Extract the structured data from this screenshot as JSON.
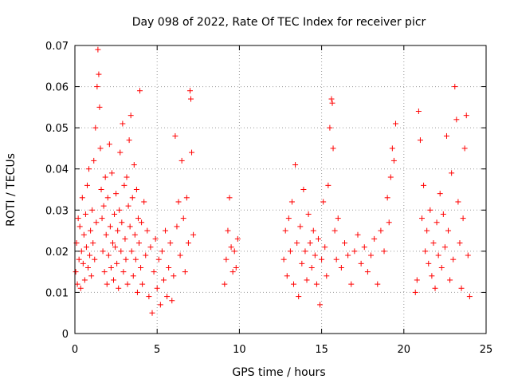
{
  "chart_data": {
    "type": "scatter",
    "title": "Day 098 of 2022, Rate Of TEC Index for receiver picr",
    "xlabel": "GPS time / hours",
    "ylabel": "ROTI / TECUs",
    "xlim": [
      0,
      25
    ],
    "ylim": [
      0,
      0.07
    ],
    "x_ticks": [
      0,
      5,
      10,
      15,
      20,
      25
    ],
    "x_tick_labels": [
      "0",
      "5",
      "10",
      "15",
      "20",
      "25"
    ],
    "y_ticks": [
      0,
      0.01,
      0.02,
      0.03,
      0.04,
      0.05,
      0.06,
      0.07
    ],
    "y_tick_labels": [
      "0",
      "0.01",
      "0.02",
      "0.03",
      "0.04",
      "0.05",
      "0.06",
      "0.07"
    ],
    "grid": true,
    "marker": "+",
    "color": "#ff0000",
    "series": [
      {
        "points": [
          [
            0.05,
            0.015
          ],
          [
            0.1,
            0.022
          ],
          [
            0.15,
            0.012
          ],
          [
            0.2,
            0.028
          ],
          [
            0.25,
            0.018
          ],
          [
            0.3,
            0.026
          ],
          [
            0.35,
            0.011
          ],
          [
            0.4,
            0.02
          ],
          [
            0.45,
            0.033
          ],
          [
            0.5,
            0.017
          ],
          [
            0.55,
            0.024
          ],
          [
            0.6,
            0.013
          ],
          [
            0.65,
            0.029
          ],
          [
            0.7,
            0.021
          ],
          [
            0.75,
            0.036
          ],
          [
            0.8,
            0.016
          ],
          [
            0.85,
            0.04
          ],
          [
            0.9,
            0.019
          ],
          [
            0.95,
            0.025
          ],
          [
            1.0,
            0.014
          ],
          [
            1.05,
            0.03
          ],
          [
            1.1,
            0.022
          ],
          [
            1.15,
            0.042
          ],
          [
            1.2,
            0.018
          ],
          [
            1.25,
            0.05
          ],
          [
            1.3,
            0.027
          ],
          [
            1.35,
            0.06
          ],
          [
            1.4,
            0.069
          ],
          [
            1.45,
            0.063
          ],
          [
            1.5,
            0.055
          ],
          [
            1.55,
            0.045
          ],
          [
            1.6,
            0.035
          ],
          [
            1.65,
            0.028
          ],
          [
            1.7,
            0.02
          ],
          [
            1.75,
            0.031
          ],
          [
            1.8,
            0.015
          ],
          [
            1.85,
            0.038
          ],
          [
            1.9,
            0.024
          ],
          [
            1.95,
            0.012
          ],
          [
            2.0,
            0.033
          ],
          [
            2.05,
            0.019
          ],
          [
            2.1,
            0.046
          ],
          [
            2.15,
            0.026
          ],
          [
            2.2,
            0.016
          ],
          [
            2.25,
            0.039
          ],
          [
            2.3,
            0.022
          ],
          [
            2.35,
            0.013
          ],
          [
            2.4,
            0.029
          ],
          [
            2.45,
            0.021
          ],
          [
            2.5,
            0.034
          ],
          [
            2.55,
            0.017
          ],
          [
            2.6,
            0.025
          ],
          [
            2.65,
            0.011
          ],
          [
            2.7,
            0.03
          ],
          [
            2.75,
            0.044
          ],
          [
            2.8,
            0.02
          ],
          [
            2.85,
            0.027
          ],
          [
            2.9,
            0.051
          ],
          [
            2.95,
            0.015
          ],
          [
            3.0,
            0.036
          ],
          [
            3.05,
            0.023
          ],
          [
            3.1,
            0.018
          ],
          [
            3.15,
            0.038
          ],
          [
            3.2,
            0.012
          ],
          [
            3.25,
            0.031
          ],
          [
            3.3,
            0.047
          ],
          [
            3.35,
            0.026
          ],
          [
            3.4,
            0.053
          ],
          [
            3.45,
            0.02
          ],
          [
            3.5,
            0.033
          ],
          [
            3.55,
            0.014
          ],
          [
            3.6,
            0.041
          ],
          [
            3.65,
            0.024
          ],
          [
            3.7,
            0.018
          ],
          [
            3.75,
            0.035
          ],
          [
            3.8,
            0.01
          ],
          [
            3.85,
            0.028
          ],
          [
            3.9,
            0.022
          ],
          [
            3.95,
            0.059
          ],
          [
            4.0,
            0.016
          ],
          [
            4.05,
            0.027
          ],
          [
            4.1,
            0.012
          ],
          [
            4.2,
            0.032
          ],
          [
            4.3,
            0.019
          ],
          [
            4.4,
            0.025
          ],
          [
            4.5,
            0.009
          ],
          [
            4.6,
            0.021
          ],
          [
            4.7,
            0.005
          ],
          [
            4.8,
            0.015
          ],
          [
            4.9,
            0.023
          ],
          [
            5.0,
            0.011
          ],
          [
            5.1,
            0.018
          ],
          [
            5.2,
            0.007
          ],
          [
            5.3,
            0.02
          ],
          [
            5.4,
            0.013
          ],
          [
            5.5,
            0.025
          ],
          [
            5.6,
            0.009
          ],
          [
            5.7,
            0.016
          ],
          [
            5.8,
            0.022
          ],
          [
            5.9,
            0.008
          ],
          [
            6.0,
            0.014
          ],
          [
            6.1,
            0.048
          ],
          [
            6.2,
            0.026
          ],
          [
            6.3,
            0.032
          ],
          [
            6.4,
            0.019
          ],
          [
            6.5,
            0.042
          ],
          [
            6.6,
            0.028
          ],
          [
            6.7,
            0.015
          ],
          [
            6.8,
            0.033
          ],
          [
            6.9,
            0.022
          ],
          [
            7.0,
            0.059
          ],
          [
            7.05,
            0.057
          ],
          [
            7.1,
            0.044
          ],
          [
            7.2,
            0.024
          ],
          [
            9.1,
            0.012
          ],
          [
            9.2,
            0.018
          ],
          [
            9.3,
            0.025
          ],
          [
            9.4,
            0.033
          ],
          [
            9.5,
            0.021
          ],
          [
            9.6,
            0.015
          ],
          [
            9.7,
            0.02
          ],
          [
            9.8,
            0.016
          ],
          [
            9.9,
            0.023
          ],
          [
            12.7,
            0.018
          ],
          [
            12.8,
            0.025
          ],
          [
            12.9,
            0.014
          ],
          [
            13.0,
            0.028
          ],
          [
            13.1,
            0.02
          ],
          [
            13.2,
            0.032
          ],
          [
            13.3,
            0.012
          ],
          [
            13.4,
            0.041
          ],
          [
            13.5,
            0.022
          ],
          [
            13.6,
            0.009
          ],
          [
            13.7,
            0.026
          ],
          [
            13.8,
            0.017
          ],
          [
            13.9,
            0.035
          ],
          [
            14.0,
            0.02
          ],
          [
            14.1,
            0.013
          ],
          [
            14.2,
            0.029
          ],
          [
            14.3,
            0.022
          ],
          [
            14.4,
            0.016
          ],
          [
            14.5,
            0.025
          ],
          [
            14.6,
            0.019
          ],
          [
            14.7,
            0.012
          ],
          [
            14.8,
            0.023
          ],
          [
            14.9,
            0.007
          ],
          [
            15.0,
            0.018
          ],
          [
            15.1,
            0.032
          ],
          [
            15.2,
            0.021
          ],
          [
            15.3,
            0.014
          ],
          [
            15.4,
            0.036
          ],
          [
            15.5,
            0.05
          ],
          [
            15.6,
            0.057
          ],
          [
            15.65,
            0.056
          ],
          [
            15.7,
            0.045
          ],
          [
            15.8,
            0.025
          ],
          [
            15.9,
            0.018
          ],
          [
            16.0,
            0.028
          ],
          [
            16.2,
            0.016
          ],
          [
            16.4,
            0.022
          ],
          [
            16.6,
            0.019
          ],
          [
            16.8,
            0.012
          ],
          [
            17.0,
            0.02
          ],
          [
            17.2,
            0.024
          ],
          [
            17.4,
            0.017
          ],
          [
            17.6,
            0.021
          ],
          [
            17.8,
            0.015
          ],
          [
            18.0,
            0.019
          ],
          [
            18.2,
            0.023
          ],
          [
            18.4,
            0.012
          ],
          [
            18.6,
            0.025
          ],
          [
            18.8,
            0.02
          ],
          [
            19.0,
            0.033
          ],
          [
            19.1,
            0.027
          ],
          [
            19.2,
            0.038
          ],
          [
            19.3,
            0.045
          ],
          [
            19.4,
            0.042
          ],
          [
            19.5,
            0.051
          ],
          [
            20.7,
            0.01
          ],
          [
            20.8,
            0.013
          ],
          [
            20.9,
            0.054
          ],
          [
            21.0,
            0.047
          ],
          [
            21.1,
            0.028
          ],
          [
            21.2,
            0.036
          ],
          [
            21.3,
            0.02
          ],
          [
            21.4,
            0.025
          ],
          [
            21.5,
            0.017
          ],
          [
            21.6,
            0.03
          ],
          [
            21.7,
            0.014
          ],
          [
            21.8,
            0.022
          ],
          [
            21.9,
            0.011
          ],
          [
            22.0,
            0.027
          ],
          [
            22.1,
            0.019
          ],
          [
            22.2,
            0.034
          ],
          [
            22.3,
            0.016
          ],
          [
            22.4,
            0.029
          ],
          [
            22.5,
            0.021
          ],
          [
            22.6,
            0.048
          ],
          [
            22.7,
            0.025
          ],
          [
            22.8,
            0.013
          ],
          [
            22.9,
            0.039
          ],
          [
            23.0,
            0.018
          ],
          [
            23.1,
            0.06
          ],
          [
            23.2,
            0.052
          ],
          [
            23.3,
            0.032
          ],
          [
            23.4,
            0.022
          ],
          [
            23.5,
            0.011
          ],
          [
            23.6,
            0.028
          ],
          [
            23.7,
            0.045
          ],
          [
            23.8,
            0.053
          ],
          [
            23.9,
            0.019
          ],
          [
            24.0,
            0.009
          ]
        ]
      }
    ]
  }
}
